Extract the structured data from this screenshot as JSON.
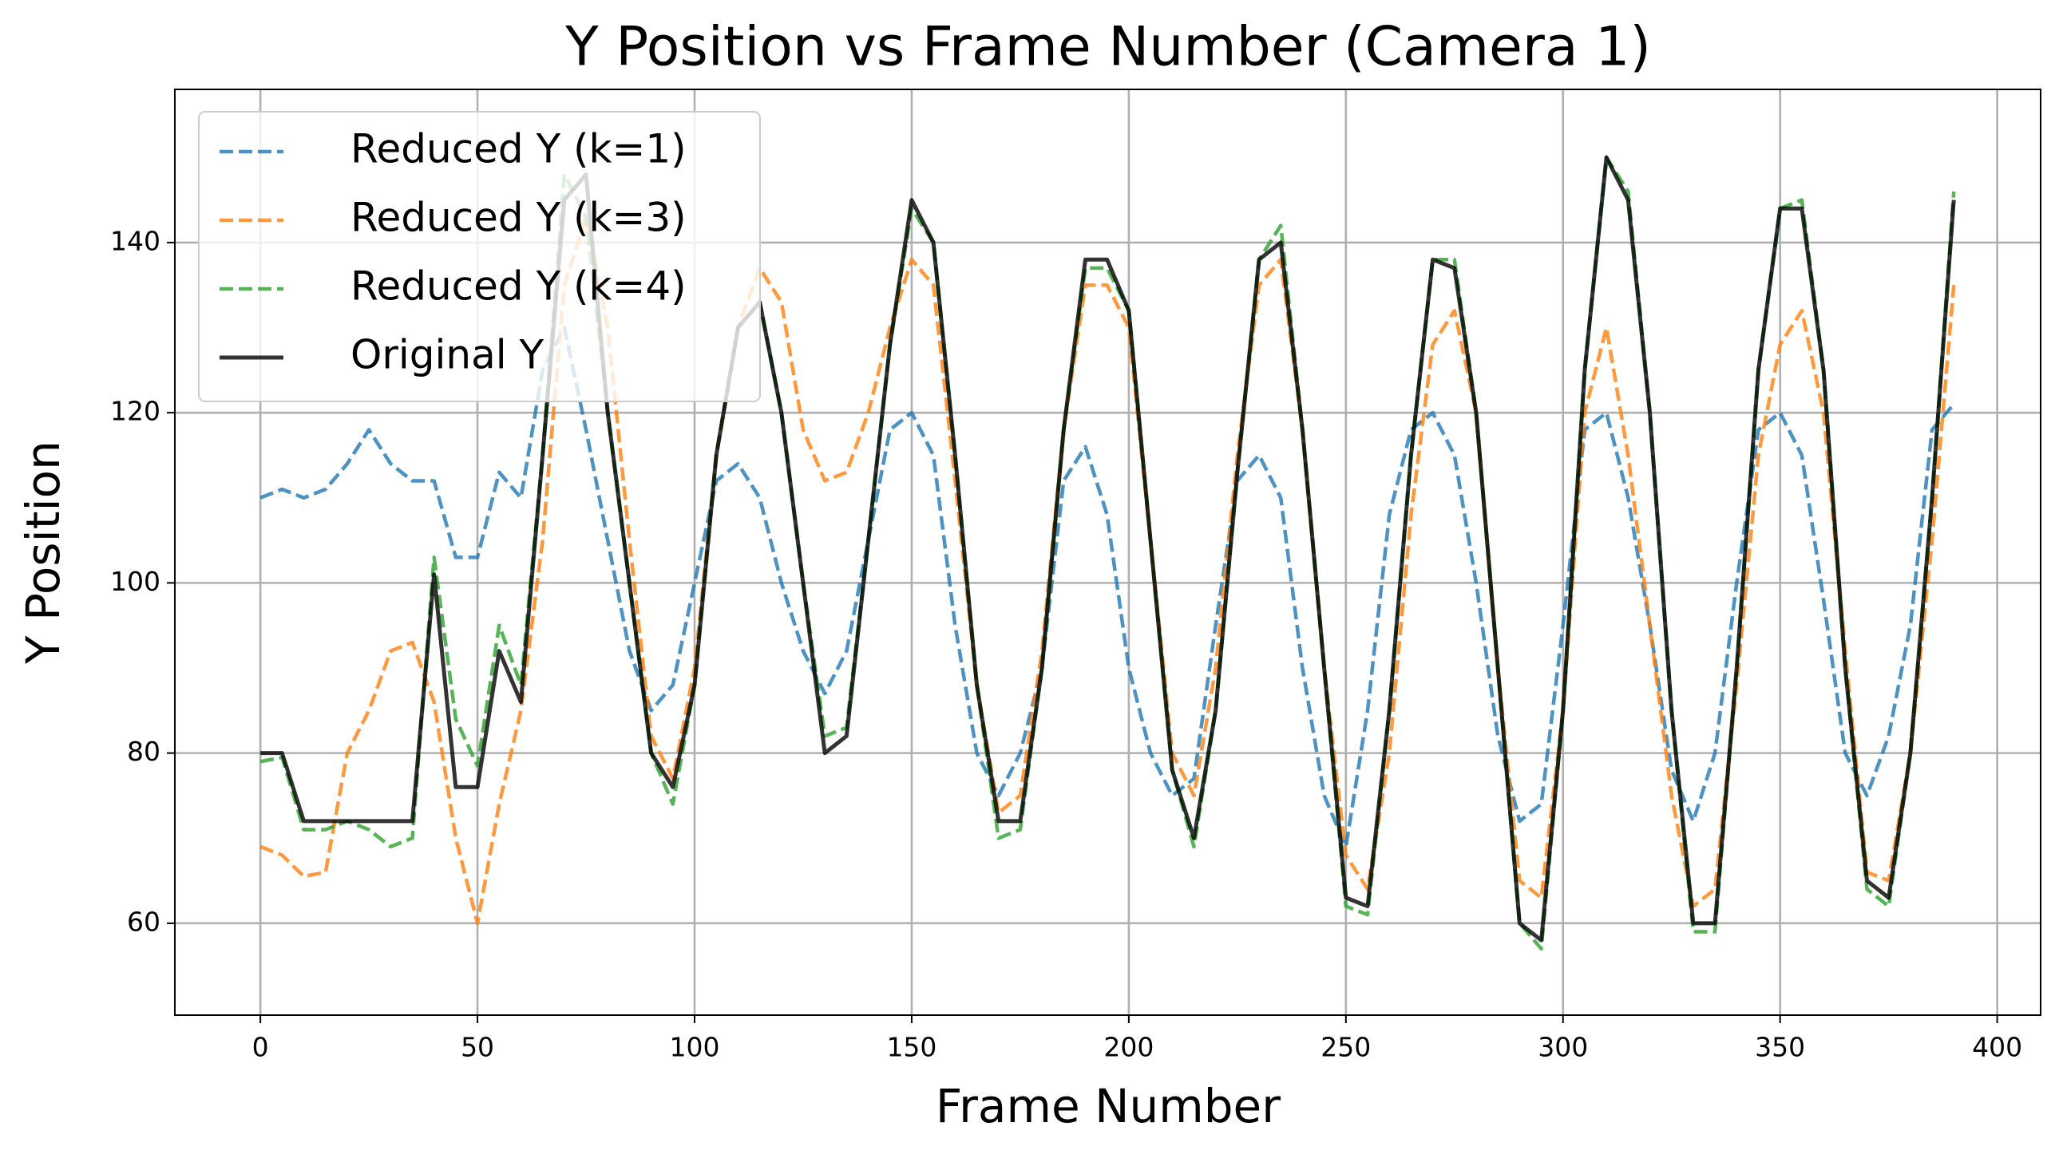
{
  "chart_data": {
    "type": "line",
    "title": "Y Position vs Frame Number (Camera 1)",
    "x_label": "Frame Number",
    "y_label": "Y Position",
    "x": [
      0,
      5,
      10,
      15,
      20,
      25,
      30,
      35,
      40,
      45,
      50,
      55,
      60,
      65,
      70,
      75,
      80,
      85,
      90,
      95,
      100,
      105,
      110,
      115,
      120,
      125,
      130,
      135,
      140,
      145,
      150,
      155,
      160,
      165,
      170,
      175,
      180,
      185,
      190,
      195,
      200,
      205,
      210,
      215,
      220,
      225,
      230,
      235,
      240,
      245,
      250,
      255,
      260,
      265,
      270,
      275,
      280,
      285,
      290,
      295,
      300,
      305,
      310,
      315,
      320,
      325,
      330,
      335,
      340,
      345,
      350,
      355,
      360,
      365,
      370,
      375,
      380,
      385,
      390
    ],
    "series": [
      {
        "name": "Reduced Y (k=1)",
        "color": "#1f77b4",
        "dashed": true,
        "values": [
          110,
          111,
          110,
          111,
          114,
          118,
          114,
          112,
          112,
          103,
          103,
          113,
          110,
          125,
          130,
          118,
          105,
          92,
          85,
          88,
          100,
          112,
          114,
          110,
          100,
          92,
          87,
          92,
          105,
          118,
          120,
          115,
          95,
          80,
          75,
          80,
          90,
          112,
          116,
          108,
          90,
          80,
          75,
          77,
          95,
          112,
          115,
          110,
          90,
          75,
          69,
          85,
          108,
          118,
          120,
          115,
          100,
          82,
          72,
          74,
          95,
          118,
          120,
          110,
          95,
          78,
          72,
          80,
          100,
          118,
          120,
          115,
          98,
          80,
          75,
          82,
          95,
          118,
          121
        ]
      },
      {
        "name": "Reduced Y (k=3)",
        "color": "#ff7f0e",
        "dashed": true,
        "values": [
          69,
          68,
          65.5,
          66,
          80,
          85,
          92,
          93,
          86,
          70,
          60,
          74,
          85,
          105,
          135,
          143,
          130,
          105,
          82,
          77,
          90,
          115,
          130,
          137,
          133,
          118,
          112,
          113,
          120,
          130,
          138,
          135,
          112,
          88,
          73,
          75,
          92,
          118,
          135,
          135,
          130,
          105,
          80,
          75,
          90,
          115,
          135,
          138,
          118,
          90,
          68,
          64,
          80,
          108,
          128,
          132,
          120,
          90,
          65,
          63,
          85,
          120,
          130,
          115,
          95,
          75,
          62,
          64,
          88,
          115,
          128,
          132,
          120,
          92,
          66,
          65,
          80,
          105,
          135
        ]
      },
      {
        "name": "Reduced Y (k=4)",
        "color": "#2ca02c",
        "dashed": true,
        "values": [
          79,
          79.5,
          71,
          71,
          72,
          71,
          69,
          70,
          103,
          84,
          78.5,
          95,
          88,
          115,
          148,
          143,
          120,
          100,
          80,
          74,
          88,
          115,
          130,
          133,
          120,
          100,
          82,
          83,
          105,
          128,
          144,
          140,
          115,
          88,
          70,
          71,
          90,
          118,
          137,
          137,
          132,
          105,
          78,
          69,
          85,
          113,
          138,
          142,
          118,
          90,
          62,
          61,
          85,
          115,
          138,
          138,
          120,
          90,
          60,
          57,
          85,
          125,
          150,
          146,
          120,
          85,
          59,
          59,
          90,
          125,
          144,
          145,
          125,
          90,
          64,
          62,
          80,
          110,
          146
        ]
      },
      {
        "name": "Original Y",
        "color": "#000000",
        "dashed": false,
        "values": [
          80,
          80,
          72,
          72,
          72,
          72,
          72,
          72,
          101,
          76,
          76,
          92,
          86,
          115,
          145,
          148,
          120,
          100,
          80,
          76,
          88,
          115,
          130,
          133,
          120,
          100,
          80,
          82,
          105,
          128,
          145,
          140,
          115,
          88,
          72,
          72,
          90,
          118,
          138,
          138,
          132,
          105,
          78,
          70,
          85,
          113,
          138,
          140,
          118,
          90,
          63,
          62,
          85,
          115,
          138,
          137,
          120,
          90,
          60,
          58,
          85,
          125,
          150,
          145,
          120,
          85,
          60,
          60,
          90,
          125,
          144,
          144,
          125,
          90,
          65,
          63,
          80,
          110,
          145
        ]
      }
    ],
    "xlim": [
      -19.7,
      410
    ],
    "ylim": [
      49.2,
      158
    ],
    "xticks": [
      0,
      50,
      100,
      150,
      200,
      250,
      300,
      350,
      400
    ],
    "yticks": [
      60,
      80,
      100,
      120,
      140
    ],
    "grid": true,
    "legend": "upper left"
  }
}
